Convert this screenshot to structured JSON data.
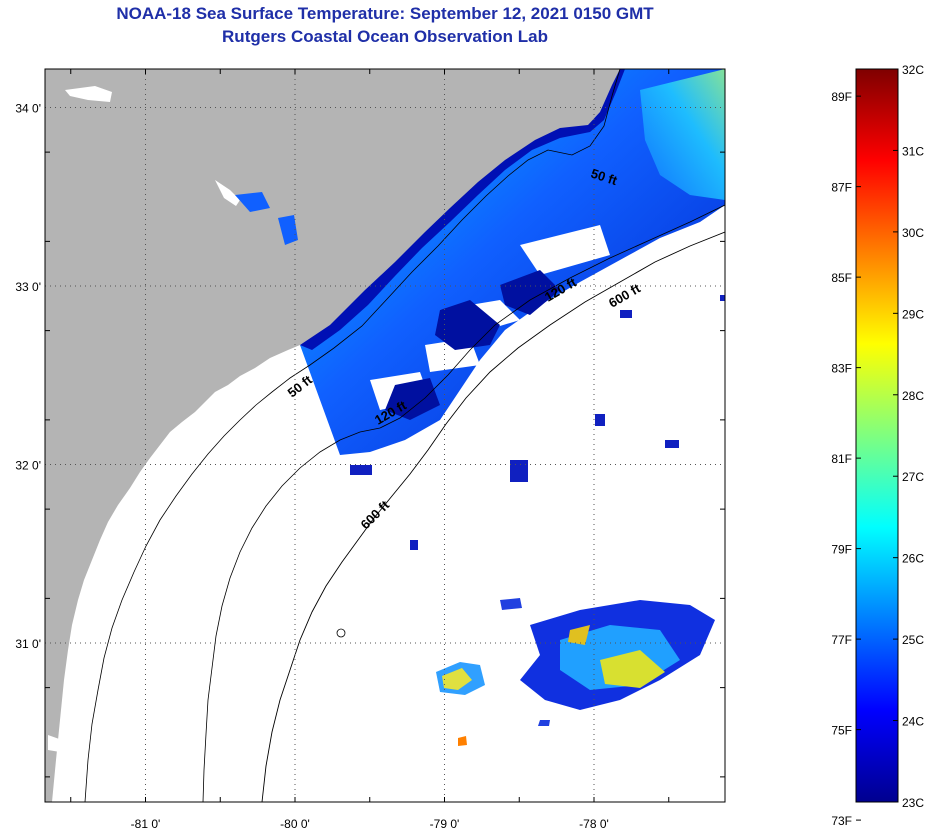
{
  "header": {
    "title_line1": "NOAA-18 Sea Surface Temperature:  September 12, 2021 0150 GMT",
    "title_line2": "Rutgers Coastal Ocean Observation Lab"
  },
  "map": {
    "lat_ticks": [
      {
        "value": 34,
        "label": "34 0'"
      },
      {
        "value": 33,
        "label": "33 0'"
      },
      {
        "value": 32,
        "label": "32 0'"
      },
      {
        "value": 31,
        "label": "31 0'"
      }
    ],
    "lon_ticks": [
      {
        "value": -81,
        "label": "-81 0'"
      },
      {
        "value": -80,
        "label": "-80 0'"
      },
      {
        "value": -79,
        "label": "-79 0'"
      },
      {
        "value": -78,
        "label": "-78 0'"
      }
    ],
    "contour_labels": [
      "50 ft",
      "50 ft",
      "120 ft",
      "120 ft",
      "600 ft",
      "600 ft"
    ],
    "colors": {
      "land": "#b4b4b4",
      "ocean_nodata": "#ffffff",
      "contour": "#000000",
      "grid": "#555555"
    }
  },
  "colorbar": {
    "celsius_labels": [
      "32C",
      "31C",
      "30C",
      "29C",
      "28C",
      "27C",
      "26C",
      "25C",
      "24C",
      "23C"
    ],
    "fahrenheit_labels": [
      "89F",
      "87F",
      "85F",
      "83F",
      "81F",
      "79F",
      "77F",
      "75F",
      "73F"
    ],
    "min_c": 23,
    "max_c": 32,
    "colors": [
      "#00008f",
      "#0000ff",
      "#007fff",
      "#00ffff",
      "#7fff7f",
      "#ffff00",
      "#ff7f00",
      "#ff0000",
      "#7f0000"
    ]
  }
}
